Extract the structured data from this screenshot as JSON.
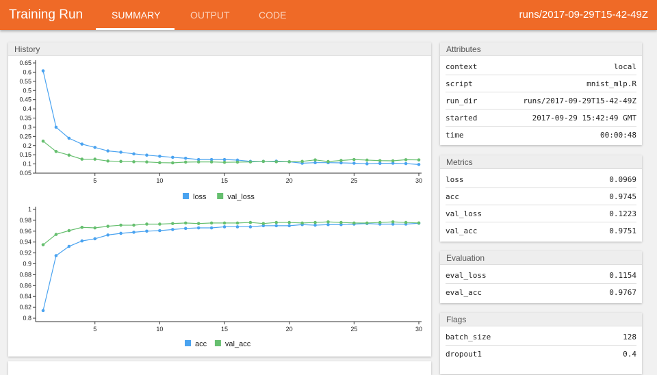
{
  "header": {
    "title": "Training Run",
    "tabs": [
      "SUMMARY",
      "OUTPUT",
      "CODE"
    ],
    "active_tab": "SUMMARY",
    "run": "runs/2017-09-29T15-42-49Z"
  },
  "history": {
    "title": "History"
  },
  "attributes": {
    "title": "Attributes",
    "rows": [
      [
        "context",
        "local"
      ],
      [
        "script",
        "mnist_mlp.R"
      ],
      [
        "run_dir",
        "runs/2017-09-29T15-42-49Z"
      ],
      [
        "started",
        "2017-09-29 15:42:49 GMT"
      ],
      [
        "time",
        "00:00:48"
      ]
    ]
  },
  "metrics": {
    "title": "Metrics",
    "rows": [
      [
        "loss",
        "0.0969"
      ],
      [
        "acc",
        "0.9745"
      ],
      [
        "val_loss",
        "0.1223"
      ],
      [
        "val_acc",
        "0.9751"
      ]
    ]
  },
  "evaluation": {
    "title": "Evaluation",
    "rows": [
      [
        "eval_loss",
        "0.1154"
      ],
      [
        "eval_acc",
        "0.9767"
      ]
    ]
  },
  "flags": {
    "title": "Flags",
    "rows": [
      [
        "batch_size",
        "128"
      ],
      [
        "dropout1",
        "0.4"
      ]
    ]
  },
  "colors": {
    "header": "#ef6a27",
    "series1": "#4aa3f0",
    "series2": "#66bf6f"
  },
  "chart_data": [
    {
      "type": "line",
      "ylim": [
        0.05,
        0.65
      ],
      "yticks": [
        0.05,
        0.1,
        0.15,
        0.2,
        0.25,
        0.3,
        0.35,
        0.4,
        0.45,
        0.5,
        0.55,
        0.6,
        0.65
      ],
      "xlim": [
        1,
        30
      ],
      "xticks": [
        5,
        10,
        15,
        20,
        25,
        30
      ],
      "grid": false,
      "legend": "bottom",
      "x": [
        1,
        2,
        3,
        4,
        5,
        6,
        7,
        8,
        9,
        10,
        11,
        12,
        13,
        14,
        15,
        16,
        17,
        18,
        19,
        20,
        21,
        22,
        23,
        24,
        25,
        26,
        27,
        28,
        29,
        30
      ],
      "series": [
        {
          "name": "loss",
          "values": [
            0.607,
            0.3,
            0.24,
            0.208,
            0.19,
            0.171,
            0.164,
            0.155,
            0.148,
            0.142,
            0.136,
            0.131,
            0.124,
            0.124,
            0.124,
            0.121,
            0.114,
            0.114,
            0.115,
            0.112,
            0.104,
            0.107,
            0.107,
            0.106,
            0.104,
            0.101,
            0.103,
            0.104,
            0.102,
            0.097
          ]
        },
        {
          "name": "val_loss",
          "values": [
            0.224,
            0.168,
            0.148,
            0.126,
            0.126,
            0.116,
            0.114,
            0.112,
            0.111,
            0.107,
            0.106,
            0.11,
            0.111,
            0.111,
            0.109,
            0.11,
            0.111,
            0.114,
            0.112,
            0.112,
            0.114,
            0.122,
            0.113,
            0.119,
            0.124,
            0.121,
            0.118,
            0.117,
            0.123,
            0.122
          ]
        }
      ]
    },
    {
      "type": "line",
      "ylim": [
        0.8,
        1
      ],
      "yticks": [
        0.8,
        0.82,
        0.84,
        0.86,
        0.88,
        0.9,
        0.92,
        0.94,
        0.96,
        0.98,
        1
      ],
      "xlim": [
        1,
        30
      ],
      "xticks": [
        5,
        10,
        15,
        20,
        25,
        30
      ],
      "grid": false,
      "legend": "bottom",
      "x": [
        1,
        2,
        3,
        4,
        5,
        6,
        7,
        8,
        9,
        10,
        11,
        12,
        13,
        14,
        15,
        16,
        17,
        18,
        19,
        20,
        21,
        22,
        23,
        24,
        25,
        26,
        27,
        28,
        29,
        30
      ],
      "series": [
        {
          "name": "acc",
          "values": [
            0.814,
            0.915,
            0.932,
            0.942,
            0.946,
            0.953,
            0.956,
            0.958,
            0.96,
            0.961,
            0.963,
            0.965,
            0.966,
            0.966,
            0.968,
            0.968,
            0.968,
            0.97,
            0.97,
            0.97,
            0.972,
            0.971,
            0.972,
            0.972,
            0.973,
            0.974,
            0.973,
            0.973,
            0.973,
            0.9745
          ]
        },
        {
          "name": "val_acc",
          "values": [
            0.935,
            0.954,
            0.961,
            0.967,
            0.966,
            0.969,
            0.971,
            0.971,
            0.973,
            0.973,
            0.974,
            0.975,
            0.974,
            0.975,
            0.975,
            0.975,
            0.976,
            0.974,
            0.976,
            0.976,
            0.975,
            0.976,
            0.977,
            0.976,
            0.975,
            0.975,
            0.976,
            0.977,
            0.976,
            0.9751
          ]
        }
      ]
    }
  ]
}
